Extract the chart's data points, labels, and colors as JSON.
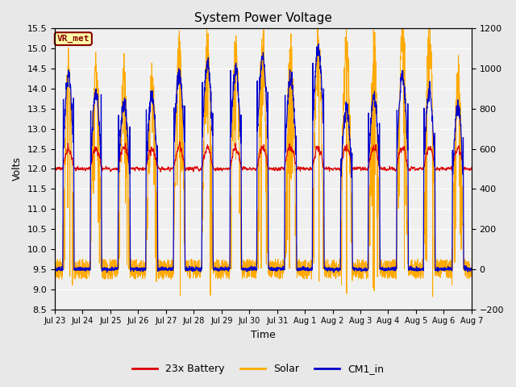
{
  "title": "System Power Voltage",
  "xlabel": "Time",
  "ylabel": "Volts",
  "xlim_start": 0,
  "xlim_end": 15,
  "ylim_left": [
    8.5,
    15.5
  ],
  "ylim_right": [
    -200,
    1200
  ],
  "xtick_labels": [
    "Jul 23",
    "Jul 24",
    "Jul 25",
    "Jul 26",
    "Jul 27",
    "Jul 28",
    "Jul 29",
    "Jul 30",
    "Jul 31",
    "Aug 1",
    "Aug 2",
    "Aug 3",
    "Aug 4",
    "Aug 5",
    "Aug 6",
    "Aug 7"
  ],
  "yticks_left": [
    8.5,
    9.0,
    9.5,
    10.0,
    10.5,
    11.0,
    11.5,
    12.0,
    12.5,
    13.0,
    13.5,
    14.0,
    14.5,
    15.0,
    15.5
  ],
  "yticks_right": [
    -200,
    0,
    200,
    400,
    600,
    800,
    1000,
    1200
  ],
  "color_battery": "#dd0000",
  "color_solar": "#ffaa00",
  "color_cm1": "#0000cc",
  "fig_bg": "#e8e8e8",
  "plot_bg": "#f0f0f0",
  "legend_labels": [
    "23x Battery",
    "Solar",
    "CM1_in"
  ],
  "annotation_text": "VR_met",
  "annotation_fg": "#880000",
  "annotation_bg": "#ffffaa"
}
